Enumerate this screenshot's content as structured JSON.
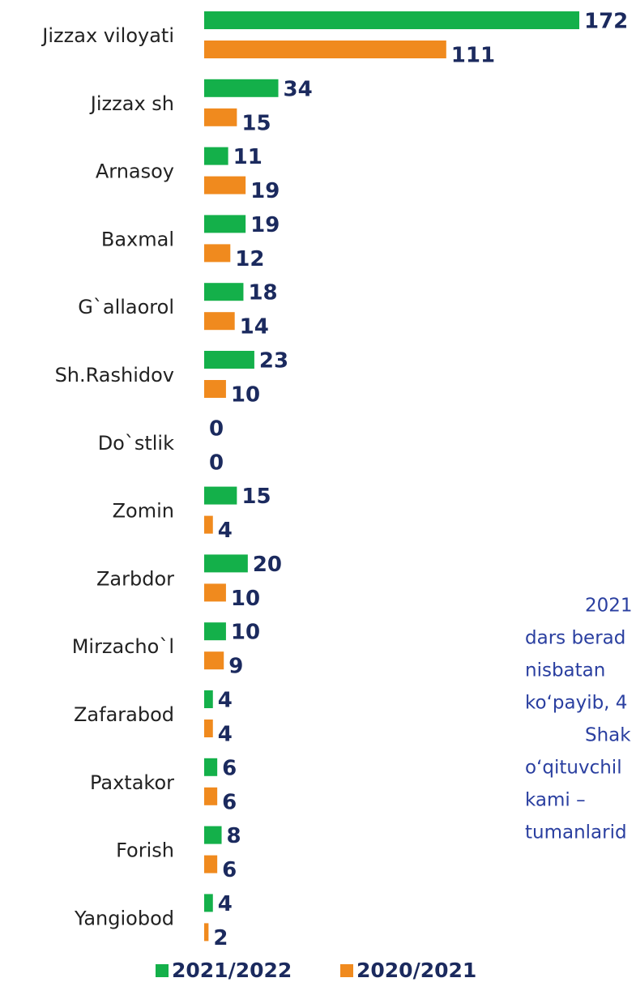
{
  "chart_data": {
    "type": "bar",
    "orientation": "horizontal",
    "categories": [
      "Jizzax viloyati",
      "Jizzax sh",
      "Arnasoy",
      "Baxmal",
      "G`allaorol",
      "Sh.Rashidov",
      "Do`stlik",
      "Zomin",
      "Zarbdor",
      "Mirzacho`l",
      "Zafarabod",
      "Paxtakor",
      "Forish",
      "Yangiobod"
    ],
    "series": [
      {
        "name": "2021/2022",
        "color": "#14b04a",
        "values": [
          172,
          34,
          11,
          19,
          18,
          23,
          0,
          15,
          20,
          10,
          4,
          6,
          8,
          4
        ]
      },
      {
        "name": "2020/2021",
        "color": "#f08a1e",
        "values": [
          111,
          15,
          19,
          12,
          14,
          10,
          0,
          4,
          10,
          9,
          4,
          6,
          6,
          2
        ]
      }
    ],
    "xlim": [
      0,
      172
    ],
    "legend": "bottom",
    "text_fragments": [
      "2021",
      "dars berad",
      "nisbatan",
      "ko‘payib, 4",
      "Shak",
      "o‘qituvchil",
      "kami –",
      "tumanlarid"
    ]
  }
}
